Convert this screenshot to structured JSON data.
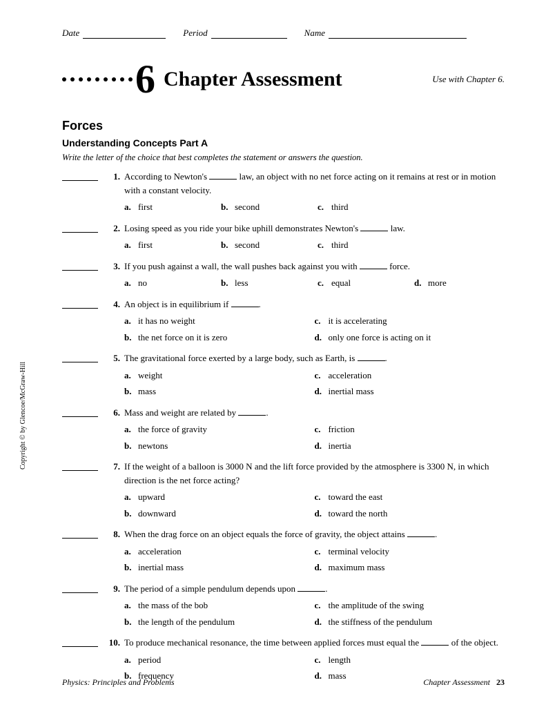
{
  "header": {
    "date_label": "Date",
    "period_label": "Period",
    "name_label": "Name"
  },
  "title": {
    "chapter_num": "6",
    "chapter_title": "Chapter Assessment",
    "use_with": "Use with Chapter 6."
  },
  "section_title": "Forces",
  "subsection_title": "Understanding Concepts Part A",
  "instructions": "Write the letter of the choice that best completes the statement or answers the question.",
  "questions": [
    {
      "num": "1.",
      "text_pre": "According to Newton's ",
      "text_post": " law, an object with no net force acting on it remains at rest or in motion with a constant velocity.",
      "choices": [
        {
          "l": "a.",
          "t": "first"
        },
        {
          "l": "b.",
          "t": "second"
        },
        {
          "l": "c.",
          "t": "third"
        }
      ],
      "layout": "row3"
    },
    {
      "num": "2.",
      "text_pre": "Losing speed as you ride your bike uphill demonstrates Newton's ",
      "text_post": " law.",
      "choices": [
        {
          "l": "a.",
          "t": "first"
        },
        {
          "l": "b.",
          "t": "second"
        },
        {
          "l": "c.",
          "t": "third"
        }
      ],
      "layout": "row3"
    },
    {
      "num": "3.",
      "text_pre": "If you push against a wall, the wall pushes back against you with ",
      "text_post": " force.",
      "choices": [
        {
          "l": "a.",
          "t": "no"
        },
        {
          "l": "b.",
          "t": "less"
        },
        {
          "l": "c.",
          "t": "equal"
        },
        {
          "l": "d.",
          "t": "more"
        }
      ],
      "layout": "row4"
    },
    {
      "num": "4.",
      "text_pre": "An object is in equilibrium if ",
      "text_post": ".",
      "choices": [
        {
          "l": "a.",
          "t": "it has no weight"
        },
        {
          "l": "c.",
          "t": "it is accelerating"
        },
        {
          "l": "b.",
          "t": "the net force on it is zero"
        },
        {
          "l": "d.",
          "t": "only one force is acting on it"
        }
      ],
      "layout": "2col"
    },
    {
      "num": "5.",
      "text_pre": "The gravitational force exerted by a large body, such as Earth, is ",
      "text_post": ".",
      "choices": [
        {
          "l": "a.",
          "t": "weight"
        },
        {
          "l": "c.",
          "t": "acceleration"
        },
        {
          "l": "b.",
          "t": "mass"
        },
        {
          "l": "d.",
          "t": "inertial mass"
        }
      ],
      "layout": "2col"
    },
    {
      "num": "6.",
      "text_pre": "Mass and weight are related by ",
      "text_post": ".",
      "choices": [
        {
          "l": "a.",
          "t": "the force of gravity"
        },
        {
          "l": "c.",
          "t": "friction"
        },
        {
          "l": "b.",
          "t": "newtons"
        },
        {
          "l": "d.",
          "t": "inertia"
        }
      ],
      "layout": "2col"
    },
    {
      "num": "7.",
      "text_plain": "If the weight of a balloon is 3000 N and the lift force provided by the atmosphere is 3300 N, in which direction is the net force acting?",
      "choices": [
        {
          "l": "a.",
          "t": "upward"
        },
        {
          "l": "c.",
          "t": "toward the east"
        },
        {
          "l": "b.",
          "t": "downward"
        },
        {
          "l": "d.",
          "t": "toward the north"
        }
      ],
      "layout": "2col"
    },
    {
      "num": "8.",
      "text_pre": "When the drag force on an object equals the force of gravity, the object attains ",
      "text_post": ".",
      "choices": [
        {
          "l": "a.",
          "t": "acceleration"
        },
        {
          "l": "c.",
          "t": "terminal velocity"
        },
        {
          "l": "b.",
          "t": "inertial mass"
        },
        {
          "l": "d.",
          "t": "maximum mass"
        }
      ],
      "layout": "2col"
    },
    {
      "num": "9.",
      "text_pre": "The period of a simple pendulum depends upon ",
      "text_post": ".",
      "choices": [
        {
          "l": "a.",
          "t": "the mass of the bob"
        },
        {
          "l": "c.",
          "t": "the amplitude of the swing"
        },
        {
          "l": "b.",
          "t": "the length of the pendulum"
        },
        {
          "l": "d.",
          "t": "the stiffness of the pendulum"
        }
      ],
      "layout": "2col"
    },
    {
      "num": "10.",
      "text_pre": "To produce mechanical resonance, the time between applied forces must equal the ",
      "text_post": " of the object.",
      "choices": [
        {
          "l": "a.",
          "t": "period"
        },
        {
          "l": "c.",
          "t": "length"
        },
        {
          "l": "b.",
          "t": "frequency"
        },
        {
          "l": "d.",
          "t": "mass"
        }
      ],
      "layout": "2col"
    }
  ],
  "copyright": "Copyright © by Glencoe/McGraw-Hill",
  "footer": {
    "left": "Physics: Principles and Problems",
    "right_label": "Chapter Assessment",
    "page": "23"
  }
}
